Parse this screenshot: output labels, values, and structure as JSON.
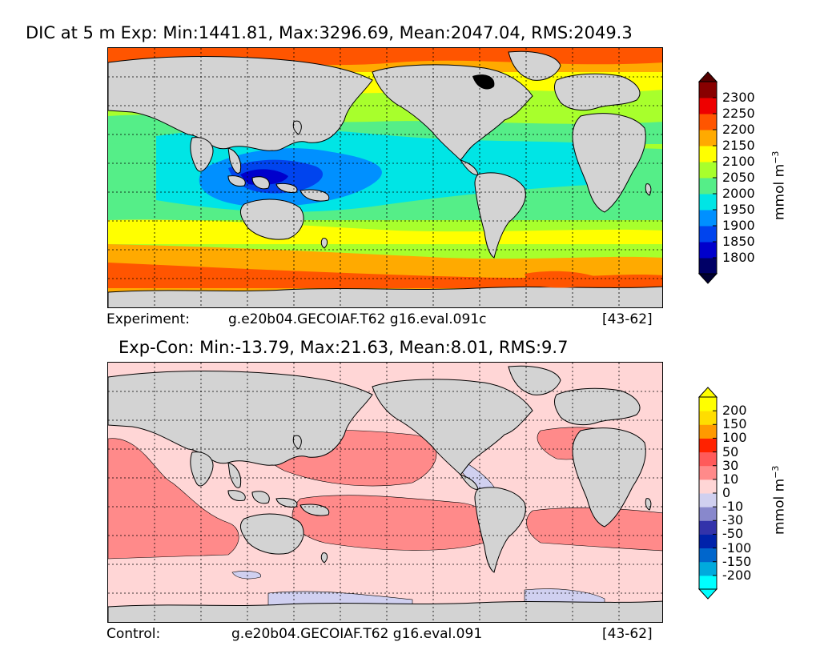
{
  "panels": [
    {
      "title": "DIC at 5 m Exp: Min:1441.81, Max:3296.69, Mean:2047.04, RMS:2049.3",
      "caption_label": "Experiment:",
      "caption_case": "g.e20b04.GECOIAF.T62 g16.eval.091c",
      "caption_years": "[43-62]",
      "unit": "mmol m",
      "unit_exp": "−3"
    },
    {
      "title": "Exp-Con: Min:-13.79, Max:21.63, Mean:8.01, RMS:9.7",
      "caption_label": "Control:",
      "caption_case": "g.e20b04.GECOIAF.T62 g16.eval.091",
      "caption_years": "[43-62]",
      "unit": "mmol m",
      "unit_exp": "−3"
    }
  ],
  "chart_data": [
    {
      "type": "heatmap",
      "title": "DIC at 5 m Exp: Min:1441.81, Max:3296.69, Mean:2047.04, RMS:2049.3",
      "colorbar": {
        "label": "mmol m^-3",
        "extend": "both",
        "levels": [
          1800,
          1850,
          1900,
          1950,
          2000,
          2050,
          2100,
          2150,
          2200,
          2250,
          2300
        ],
        "tick_labels": [
          "1800",
          "1850",
          "1900",
          "1950",
          "2000",
          "2050",
          "2100",
          "2150",
          "2200",
          "2250",
          "2300"
        ],
        "colors": [
          "#000066",
          "#0000cc",
          "#0044ee",
          "#0090ff",
          "#00e5e5",
          "#55ee88",
          "#a8ff2c",
          "#ffff00",
          "#ffaa00",
          "#ff5500",
          "#ee0000",
          "#880000"
        ],
        "under_color": "#000033",
        "over_color": "#550000"
      },
      "land_color": "#d3d3d3"
    },
    {
      "type": "heatmap",
      "title": "Exp-Con: Min:-13.79, Max:21.63, Mean:8.01, RMS:9.7",
      "colorbar": {
        "label": "mmol m^-3",
        "extend": "both",
        "levels": [
          -200,
          -150,
          -100,
          -50,
          -30,
          -10,
          0,
          10,
          30,
          50,
          100,
          150,
          200
        ],
        "tick_labels": [
          "-200",
          "-150",
          "-100",
          "-50",
          "-30",
          "-10",
          "0",
          "10",
          "30",
          "50",
          "100",
          "150",
          "200"
        ],
        "colors": [
          "#00ffff",
          "#00aadd",
          "#0066cc",
          "#0022aa",
          "#3333aa",
          "#8888cc",
          "#d0d0f0",
          "#ffd6d6",
          "#ff8a8a",
          "#ff5a5a",
          "#ff2200",
          "#ff9900",
          "#ffdd00",
          "#ffff00"
        ],
        "under_color": "#00ffff",
        "over_color": "#ffff00"
      },
      "land_color": "#d3d3d3"
    }
  ]
}
